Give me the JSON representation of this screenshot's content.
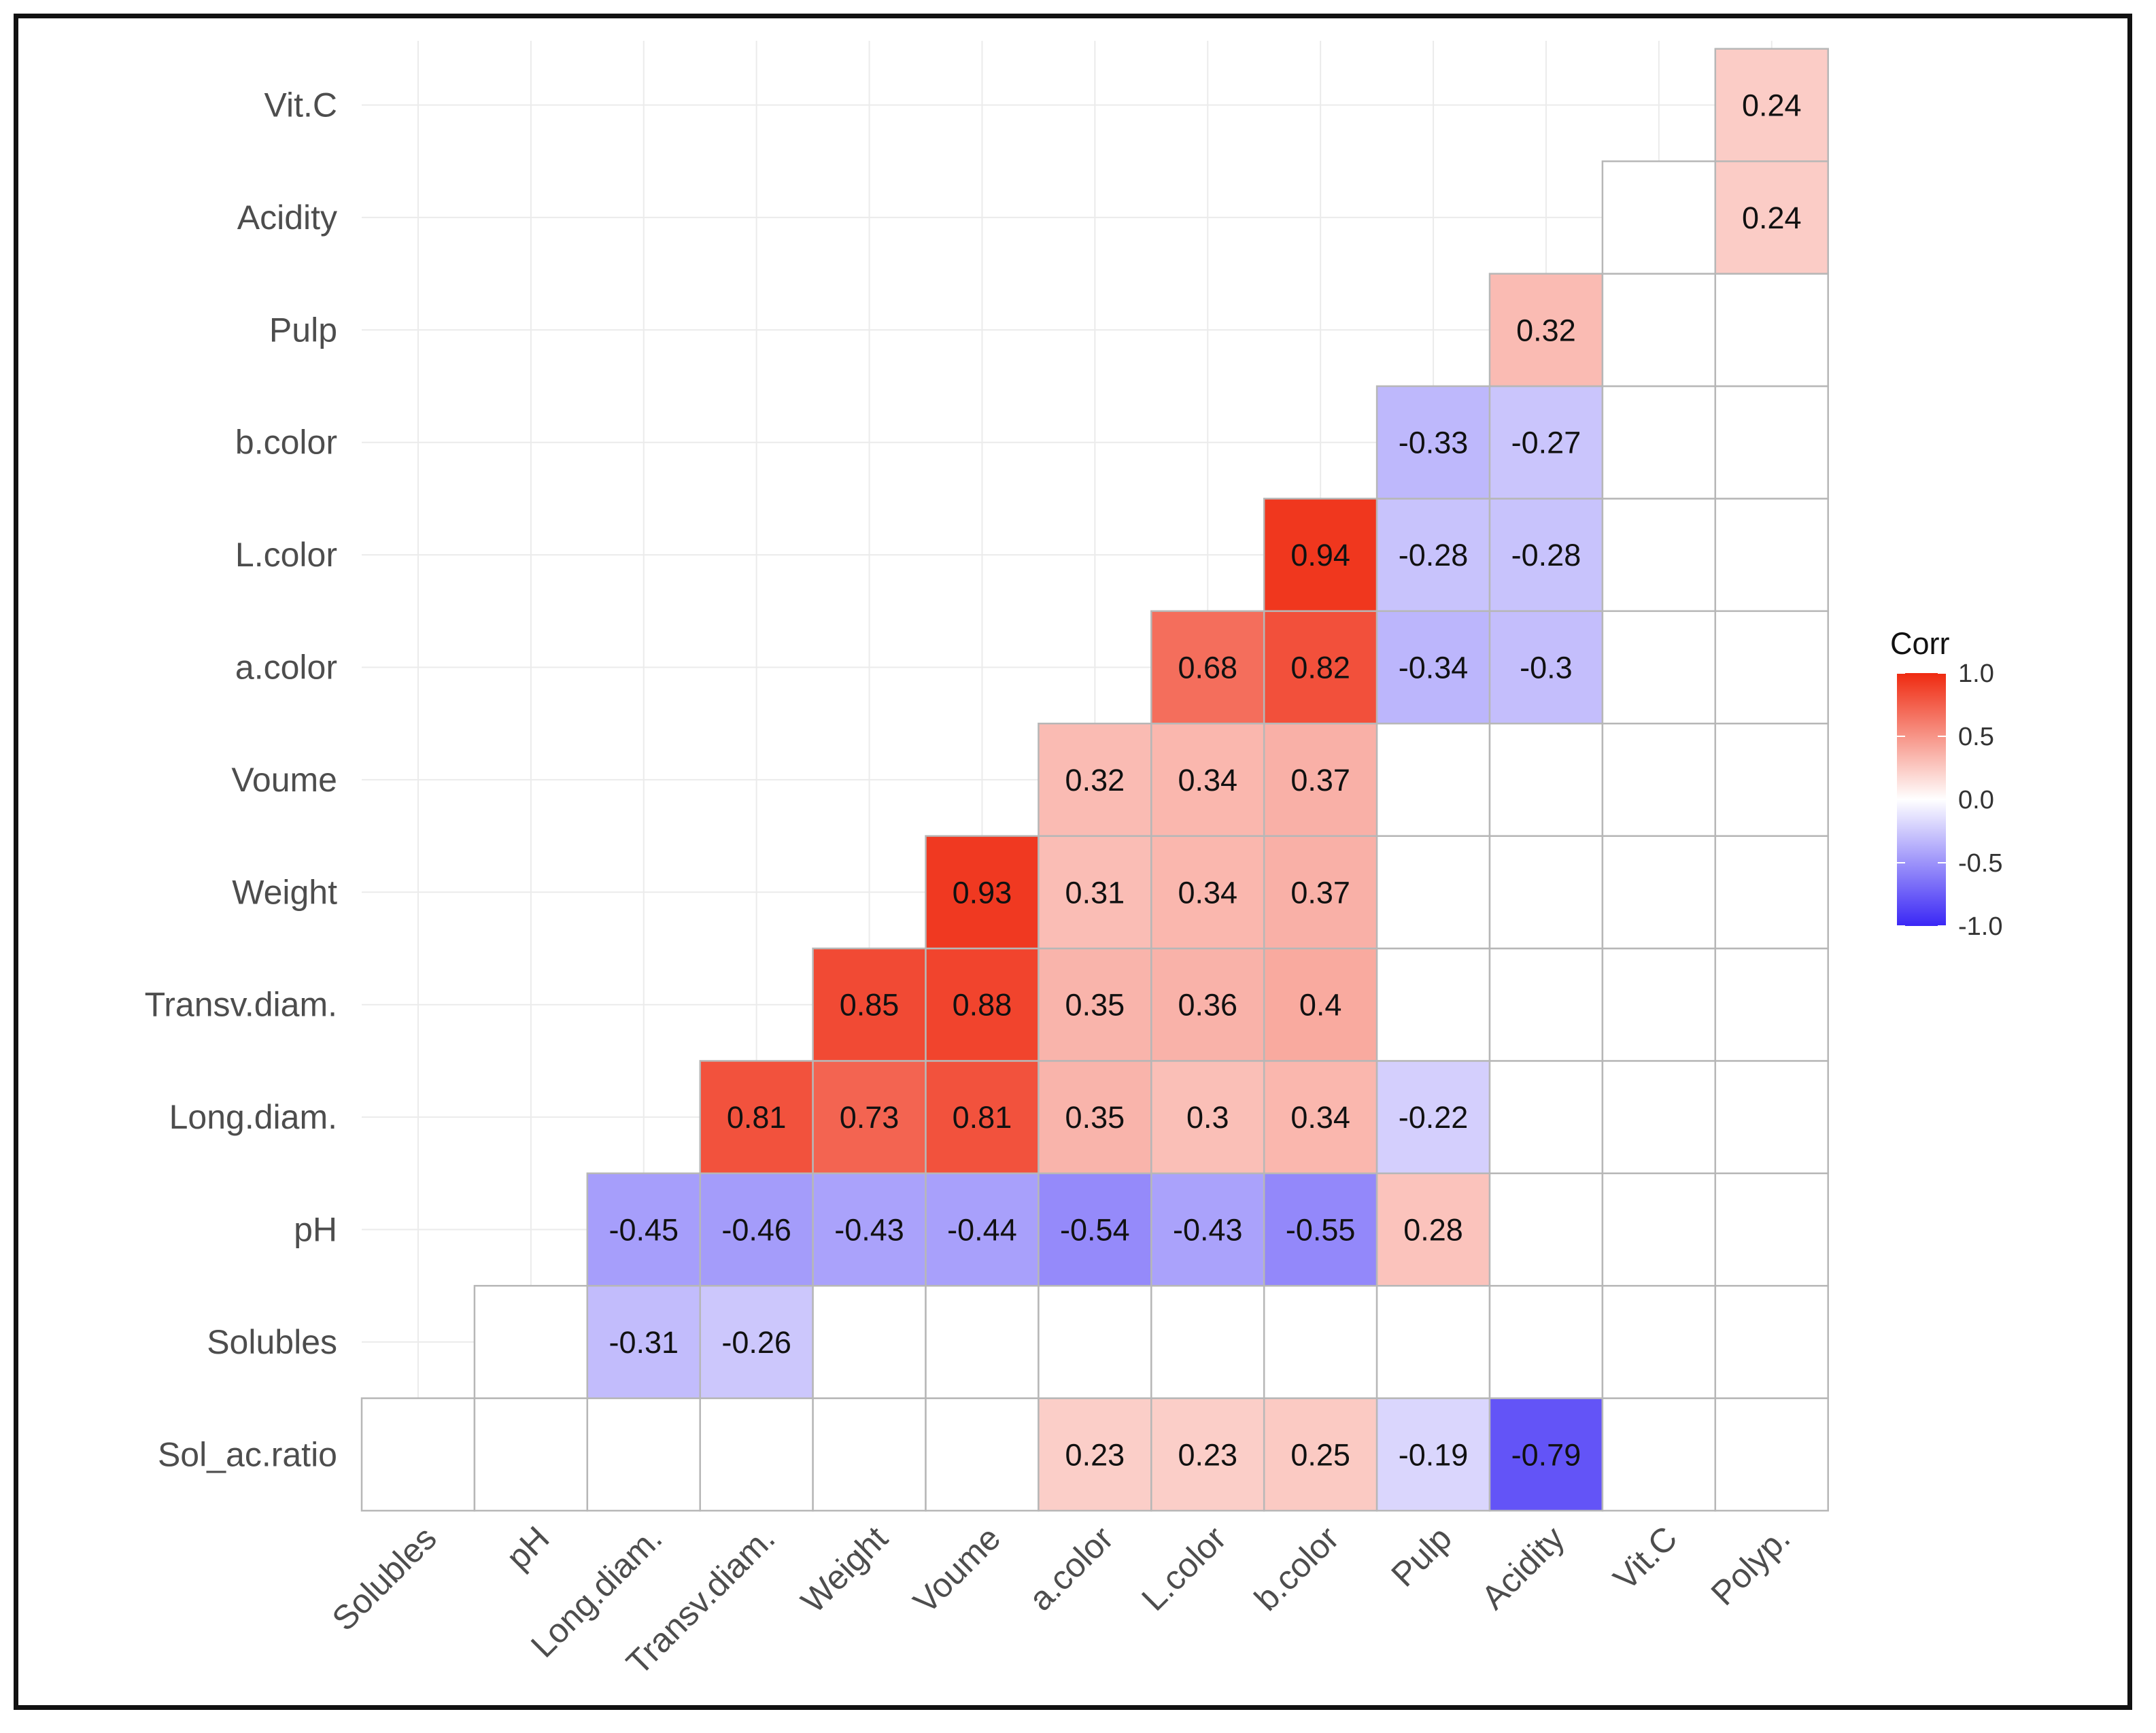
{
  "chart_data": {
    "type": "heatmap",
    "legend": {
      "title": "Corr",
      "ticks": [
        "1.0",
        "0.5",
        "0.0",
        "-0.5",
        "-1.0"
      ],
      "tick_values": [
        1,
        0.5,
        0,
        -0.5,
        -1
      ],
      "placement": "right"
    },
    "colors": {
      "low": "#3a27f5",
      "mid": "#ffffff",
      "high": "#ef2a10",
      "na": "#ffffff",
      "grid": "#ebebeb",
      "tile_border": "#b7b7b7"
    },
    "x_labels": [
      "Solubles",
      "pH",
      "Long.diam.",
      "Transv.diam.",
      "Weight",
      "Voume",
      "a.color",
      "L.color",
      "b.color",
      "Pulp",
      "Acidity",
      "Vit.C",
      "Polyp."
    ],
    "y_labels": [
      "Sol_ac.ratio",
      "Solubles",
      "pH",
      "Long.diam.",
      "Transv.diam.",
      "Weight",
      "Voume",
      "a.color",
      "L.color",
      "b.color",
      "Pulp",
      "Acidity",
      "Vit.C"
    ],
    "rows": [
      [
        null,
        null,
        null,
        null,
        null,
        null,
        0.23,
        0.23,
        0.25,
        -0.19,
        -0.79,
        null,
        null
      ],
      [
        null,
        null,
        -0.31,
        -0.26,
        null,
        null,
        null,
        null,
        null,
        null,
        null,
        null,
        null
      ],
      [
        null,
        null,
        -0.45,
        -0.46,
        -0.43,
        -0.44,
        -0.54,
        -0.43,
        -0.55,
        0.28,
        null,
        null,
        null
      ],
      [
        null,
        null,
        null,
        0.81,
        0.73,
        0.81,
        0.35,
        0.3,
        0.34,
        -0.22,
        null,
        null,
        null
      ],
      [
        null,
        null,
        null,
        null,
        0.85,
        0.88,
        0.35,
        0.36,
        0.4,
        null,
        null,
        null,
        null
      ],
      [
        null,
        null,
        null,
        null,
        null,
        0.93,
        0.31,
        0.34,
        0.37,
        null,
        null,
        null,
        null
      ],
      [
        null,
        null,
        null,
        null,
        null,
        null,
        0.32,
        0.34,
        0.37,
        null,
        null,
        null,
        null
      ],
      [
        null,
        null,
        null,
        null,
        null,
        null,
        null,
        0.68,
        0.82,
        -0.34,
        -0.3,
        null,
        null
      ],
      [
        null,
        null,
        null,
        null,
        null,
        null,
        null,
        null,
        0.94,
        -0.28,
        -0.28,
        null,
        null
      ],
      [
        null,
        null,
        null,
        null,
        null,
        null,
        null,
        null,
        null,
        -0.33,
        -0.27,
        null,
        null
      ],
      [
        null,
        null,
        null,
        null,
        null,
        null,
        null,
        null,
        null,
        null,
        0.32,
        null,
        null
      ],
      [
        null,
        null,
        null,
        null,
        null,
        null,
        null,
        null,
        null,
        null,
        null,
        null,
        0.24
      ],
      [
        null,
        null,
        null,
        null,
        null,
        null,
        null,
        null,
        null,
        null,
        null,
        null,
        0.24
      ]
    ]
  }
}
